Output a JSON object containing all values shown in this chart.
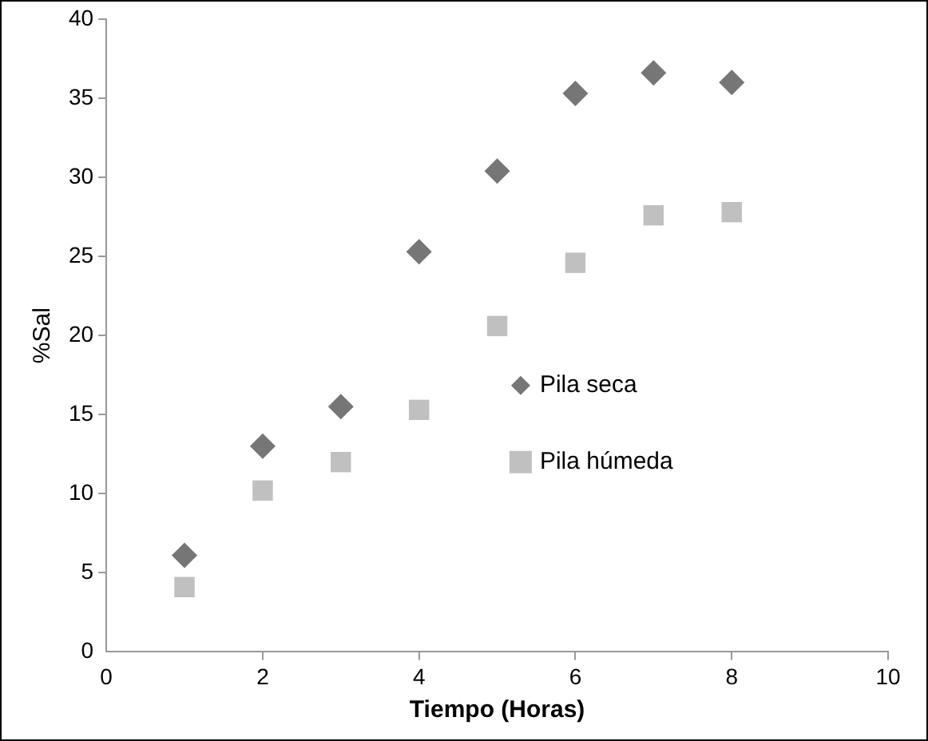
{
  "chart_data": {
    "type": "scatter",
    "xlabel": "Tiempo (Horas)",
    "ylabel": "%Sal",
    "x": [
      1,
      2,
      3,
      4,
      5,
      6,
      7,
      8
    ],
    "series": [
      {
        "name": "Pila seca",
        "color": "#767676",
        "marker": "diamond",
        "values": [
          6.1,
          13.0,
          15.5,
          25.3,
          30.4,
          35.3,
          36.6,
          36.0
        ]
      },
      {
        "name": "Pila húmeda",
        "color": "#c0c0c0",
        "marker": "square",
        "values": [
          4.1,
          10.2,
          12.0,
          15.3,
          20.6,
          24.6,
          27.6,
          27.8
        ]
      }
    ],
    "xlim": [
      0,
      10
    ],
    "xticks": [
      0,
      2,
      4,
      6,
      8,
      10
    ],
    "ylim": [
      0,
      40
    ],
    "yticks": [
      0,
      5,
      10,
      15,
      20,
      25,
      30,
      35,
      40
    ],
    "grid": false,
    "legend": "right"
  }
}
